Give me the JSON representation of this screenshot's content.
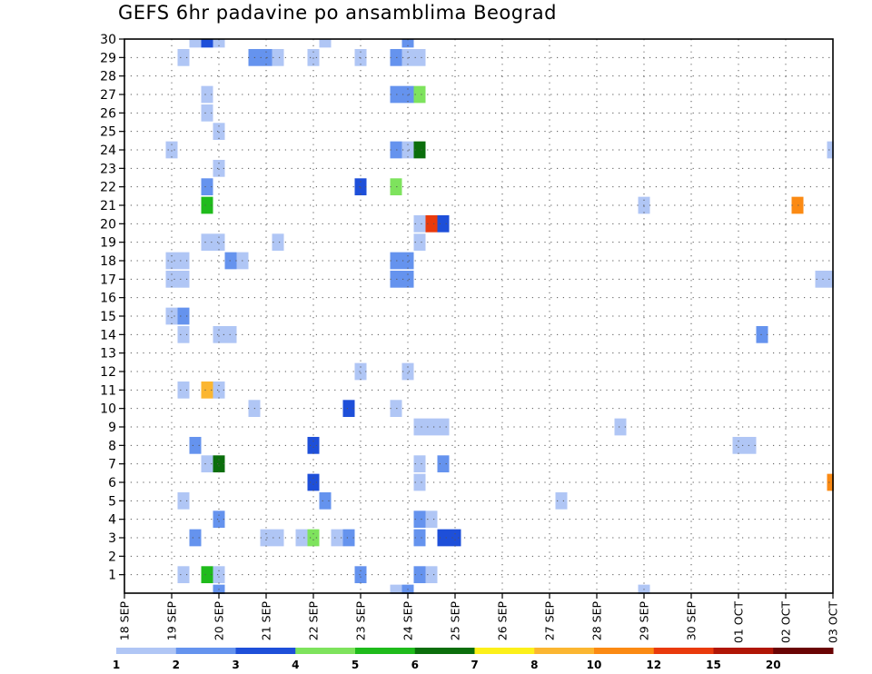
{
  "chart_data": {
    "type": "heatmap",
    "title": "GEFS 6hr padavine po ansamblima Beograd",
    "x_tick_labels": [
      "18 SEP",
      "19 SEP",
      "20 SEP",
      "21 SEP",
      "22 SEP",
      "23 SEP",
      "24 SEP",
      "25 SEP",
      "26 SEP",
      "27 SEP",
      "28 SEP",
      "29 SEP",
      "30 SEP",
      "01 OCT",
      "02 OCT",
      "03 OCT"
    ],
    "y_tick_labels": [
      "1",
      "2",
      "3",
      "4",
      "5",
      "6",
      "7",
      "8",
      "9",
      "10",
      "11",
      "12",
      "13",
      "14",
      "15",
      "16",
      "17",
      "18",
      "19",
      "20",
      "21",
      "22",
      "23",
      "24",
      "25",
      "26",
      "27",
      "28",
      "29",
      "30"
    ],
    "xlim_steps": [
      0,
      60
    ],
    "ylim": [
      0,
      30
    ],
    "grid": true,
    "colorbar": {
      "bounds": [
        "1",
        "2",
        "3",
        "4",
        "5",
        "6",
        "7",
        "8",
        "10",
        "12",
        "15",
        "20"
      ],
      "colors": [
        "#b0c6f5",
        "#6593ee",
        "#1e4fd9",
        "#7ee35d",
        "#1fbb1b",
        "#0b6e0c",
        "#fcf01a",
        "#fbb631",
        "#fb8a13",
        "#e93a0c",
        "#b01606",
        "#6a0404"
      ]
    },
    "cells": [
      {
        "step": 6,
        "member": 30,
        "cls": 1
      },
      {
        "step": 7,
        "member": 30,
        "cls": 3
      },
      {
        "step": 8,
        "member": 30,
        "cls": 1
      },
      {
        "step": 17,
        "member": 30,
        "cls": 1
      },
      {
        "step": 24,
        "member": 30,
        "cls": 2
      },
      {
        "step": 5,
        "member": 29,
        "cls": 1
      },
      {
        "step": 11,
        "member": 29,
        "cls": 2
      },
      {
        "step": 12,
        "member": 29,
        "cls": 2
      },
      {
        "step": 13,
        "member": 29,
        "cls": 1
      },
      {
        "step": 16,
        "member": 29,
        "cls": 1
      },
      {
        "step": 20,
        "member": 29,
        "cls": 1
      },
      {
        "step": 23,
        "member": 29,
        "cls": 2
      },
      {
        "step": 24,
        "member": 29,
        "cls": 1
      },
      {
        "step": 25,
        "member": 29,
        "cls": 1
      },
      {
        "step": 7,
        "member": 27,
        "cls": 1
      },
      {
        "step": 23,
        "member": 27,
        "cls": 2
      },
      {
        "step": 24,
        "member": 27,
        "cls": 2
      },
      {
        "step": 25,
        "member": 27,
        "cls": 4
      },
      {
        "step": 7,
        "member": 26,
        "cls": 1
      },
      {
        "step": 8,
        "member": 25,
        "cls": 1
      },
      {
        "step": 4,
        "member": 24,
        "cls": 1
      },
      {
        "step": 23,
        "member": 24,
        "cls": 2
      },
      {
        "step": 24,
        "member": 24,
        "cls": 1
      },
      {
        "step": 25,
        "member": 24,
        "cls": 6
      },
      {
        "step": 60,
        "member": 24,
        "cls": 1
      },
      {
        "step": 8,
        "member": 23,
        "cls": 1
      },
      {
        "step": 7,
        "member": 22,
        "cls": 2
      },
      {
        "step": 20,
        "member": 22,
        "cls": 3
      },
      {
        "step": 23,
        "member": 22,
        "cls": 4
      },
      {
        "step": 7,
        "member": 21,
        "cls": 5
      },
      {
        "step": 44,
        "member": 21,
        "cls": 1
      },
      {
        "step": 57,
        "member": 21,
        "cls": 9
      },
      {
        "step": 25,
        "member": 20,
        "cls": 1
      },
      {
        "step": 26,
        "member": 20,
        "cls": 10
      },
      {
        "step": 27,
        "member": 20,
        "cls": 3
      },
      {
        "step": 7,
        "member": 19,
        "cls": 1
      },
      {
        "step": 8,
        "member": 19,
        "cls": 1
      },
      {
        "step": 13,
        "member": 19,
        "cls": 1
      },
      {
        "step": 25,
        "member": 19,
        "cls": 1
      },
      {
        "step": 4,
        "member": 18,
        "cls": 1
      },
      {
        "step": 5,
        "member": 18,
        "cls": 1
      },
      {
        "step": 9,
        "member": 18,
        "cls": 2
      },
      {
        "step": 10,
        "member": 18,
        "cls": 1
      },
      {
        "step": 23,
        "member": 18,
        "cls": 2
      },
      {
        "step": 24,
        "member": 18,
        "cls": 2
      },
      {
        "step": 4,
        "member": 17,
        "cls": 1
      },
      {
        "step": 5,
        "member": 17,
        "cls": 1
      },
      {
        "step": 23,
        "member": 17,
        "cls": 2
      },
      {
        "step": 24,
        "member": 17,
        "cls": 2
      },
      {
        "step": 59,
        "member": 17,
        "cls": 1
      },
      {
        "step": 60,
        "member": 17,
        "cls": 1
      },
      {
        "step": 4,
        "member": 15,
        "cls": 1
      },
      {
        "step": 5,
        "member": 15,
        "cls": 2
      },
      {
        "step": 5,
        "member": 14,
        "cls": 1
      },
      {
        "step": 8,
        "member": 14,
        "cls": 1
      },
      {
        "step": 9,
        "member": 14,
        "cls": 1
      },
      {
        "step": 54,
        "member": 14,
        "cls": 2
      },
      {
        "step": 20,
        "member": 12,
        "cls": 1
      },
      {
        "step": 24,
        "member": 12,
        "cls": 1
      },
      {
        "step": 5,
        "member": 11,
        "cls": 1
      },
      {
        "step": 7,
        "member": 11,
        "cls": 8
      },
      {
        "step": 8,
        "member": 11,
        "cls": 1
      },
      {
        "step": 11,
        "member": 10,
        "cls": 1
      },
      {
        "step": 19,
        "member": 10,
        "cls": 3
      },
      {
        "step": 23,
        "member": 10,
        "cls": 1
      },
      {
        "step": 25,
        "member": 9,
        "cls": 1
      },
      {
        "step": 26,
        "member": 9,
        "cls": 1
      },
      {
        "step": 27,
        "member": 9,
        "cls": 1
      },
      {
        "step": 42,
        "member": 9,
        "cls": 1
      },
      {
        "step": 6,
        "member": 8,
        "cls": 2
      },
      {
        "step": 16,
        "member": 8,
        "cls": 3
      },
      {
        "step": 52,
        "member": 8,
        "cls": 1
      },
      {
        "step": 53,
        "member": 8,
        "cls": 1
      },
      {
        "step": 7,
        "member": 7,
        "cls": 1
      },
      {
        "step": 8,
        "member": 7,
        "cls": 6
      },
      {
        "step": 25,
        "member": 7,
        "cls": 1
      },
      {
        "step": 27,
        "member": 7,
        "cls": 2
      },
      {
        "step": 16,
        "member": 6,
        "cls": 3
      },
      {
        "step": 25,
        "member": 6,
        "cls": 1
      },
      {
        "step": 60,
        "member": 6,
        "cls": 9
      },
      {
        "step": 17,
        "member": 5,
        "cls": 2
      },
      {
        "step": 5,
        "member": 5,
        "cls": 1
      },
      {
        "step": 37,
        "member": 5,
        "cls": 1
      },
      {
        "step": 8,
        "member": 4,
        "cls": 2
      },
      {
        "step": 25,
        "member": 4,
        "cls": 2
      },
      {
        "step": 26,
        "member": 4,
        "cls": 1
      },
      {
        "step": 6,
        "member": 3,
        "cls": 2
      },
      {
        "step": 12,
        "member": 3,
        "cls": 1
      },
      {
        "step": 13,
        "member": 3,
        "cls": 1
      },
      {
        "step": 15,
        "member": 3,
        "cls": 1
      },
      {
        "step": 16,
        "member": 3,
        "cls": 4
      },
      {
        "step": 18,
        "member": 3,
        "cls": 1
      },
      {
        "step": 19,
        "member": 3,
        "cls": 2
      },
      {
        "step": 25,
        "member": 3,
        "cls": 2
      },
      {
        "step": 27,
        "member": 3,
        "cls": 3
      },
      {
        "step": 28,
        "member": 3,
        "cls": 3
      },
      {
        "step": 5,
        "member": 1,
        "cls": 1
      },
      {
        "step": 7,
        "member": 1,
        "cls": 5
      },
      {
        "step": 8,
        "member": 1,
        "cls": 1
      },
      {
        "step": 20,
        "member": 1,
        "cls": 2
      },
      {
        "step": 25,
        "member": 1,
        "cls": 2
      },
      {
        "step": 26,
        "member": 1,
        "cls": 1
      },
      {
        "step": 8,
        "member": 0,
        "cls": 2
      },
      {
        "step": 23,
        "member": 0,
        "cls": 1
      },
      {
        "step": 24,
        "member": 0,
        "cls": 2
      },
      {
        "step": 44,
        "member": 0,
        "cls": 1
      }
    ]
  }
}
